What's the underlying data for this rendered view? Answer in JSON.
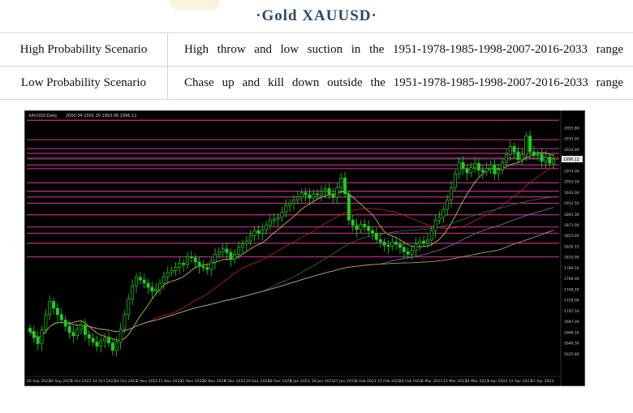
{
  "header": {
    "title": "·Gold  XAUUSD·"
  },
  "scenarios": [
    {
      "label": "High Probability Scenario",
      "value": "High throw and low suction in the 1951-1978-1985-1998-2007-2016-2033 range"
    },
    {
      "label": "Low Probability Scenario",
      "value": "Chase up and kill down outside the 1951-1978-1985-1998-2007-2016-2033 range"
    }
  ],
  "chart_data": {
    "type": "candlestick",
    "title": "XAUUSD,Daily",
    "header_values": "2000.04 2001.20 1993.06 1996.12",
    "ylim": [
      1590,
      2075
    ],
    "last_price": "1996.12",
    "y_ticks": [
      "2055.80",
      "2035.95",
      "2014.90",
      "1994.60",
      "1974.00",
      "1953.50",
      "1933.00",
      "1912.50",
      "1891.30",
      "1871.00",
      "1851.00",
      "1830.15",
      "1810.00",
      "1789.50",
      "1769.00",
      "1748.20",
      "1728.00",
      "1707.50",
      "1687.00",
      "1666.50",
      "1646.30",
      "1625.80"
    ],
    "x_labels": [
      "26 Sep 2022",
      "26 Sep 2022",
      "5 Oct 2022",
      "14 Oct 2022",
      "24 Oct 2022",
      "2 Nov 2022",
      "11 Nov 2022",
      "21 Nov 2022",
      "30 Nov 2022",
      "9 Dec 2022",
      "19 Dec 2022",
      "28 Dec 2022",
      "9 Jan 2023",
      "18 Jan 2023",
      "27 Jan 2023",
      "6 Feb 2023",
      "15 Feb 2023",
      "24 Feb 2023",
      "6 Mar 2023",
      "15 Mar 2023",
      "24 Mar 2023",
      "3 Apr 2023",
      "12 Apr 2023",
      "21 Apr 2023"
    ],
    "horizontal_levels": [
      2070,
      2033,
      2016,
      2007,
      1998,
      1985,
      1978,
      1951,
      1935,
      1924,
      1912,
      1890,
      1867,
      1855,
      1836,
      1810
    ],
    "colors": {
      "background": "#000000",
      "candle": "#19d219",
      "level_line": "#c02c8c",
      "ma_fast": "#c8b450",
      "ma_mid": "#b42020",
      "ma_slow1": "#2f6a2f",
      "ma_slow2": "#6e6e9a",
      "ma_slow3": "#a69a7a",
      "axis_text": "#cfcfcf"
    },
    "closes": [
      1668,
      1656,
      1645,
      1671,
      1700,
      1725,
      1712,
      1700,
      1690,
      1678,
      1666,
      1660,
      1672,
      1680,
      1662,
      1655,
      1648,
      1640,
      1650,
      1655,
      1646,
      1632,
      1648,
      1672,
      1700,
      1730,
      1755,
      1771,
      1766,
      1760,
      1752,
      1745,
      1748,
      1760,
      1772,
      1780,
      1784,
      1790,
      1798,
      1795,
      1810,
      1808,
      1800,
      1792,
      1790,
      1786,
      1800,
      1815,
      1820,
      1825,
      1818,
      1805,
      1815,
      1828,
      1835,
      1840,
      1850,
      1860,
      1855,
      1862,
      1870,
      1880,
      1882,
      1885,
      1895,
      1908,
      1912,
      1918,
      1924,
      1932,
      1928,
      1922,
      1930,
      1928,
      1935,
      1940,
      1928,
      1923,
      1942,
      1960,
      1930,
      1880,
      1870,
      1862,
      1872,
      1868,
      1860,
      1855,
      1843,
      1838,
      1832,
      1830,
      1838,
      1834,
      1828,
      1820,
      1815,
      1822,
      1835,
      1840,
      1836,
      1842,
      1860,
      1880,
      1885,
      1900,
      1918,
      1942,
      1968,
      1990,
      1978,
      1970,
      1980,
      1988,
      1975,
      1972,
      1978,
      1985,
      1968,
      1975,
      1990,
      2005,
      2020,
      2010,
      1995,
      2004,
      2040,
      2010,
      2003,
      2005,
      1992,
      2000,
      1988,
      1996
    ]
  }
}
